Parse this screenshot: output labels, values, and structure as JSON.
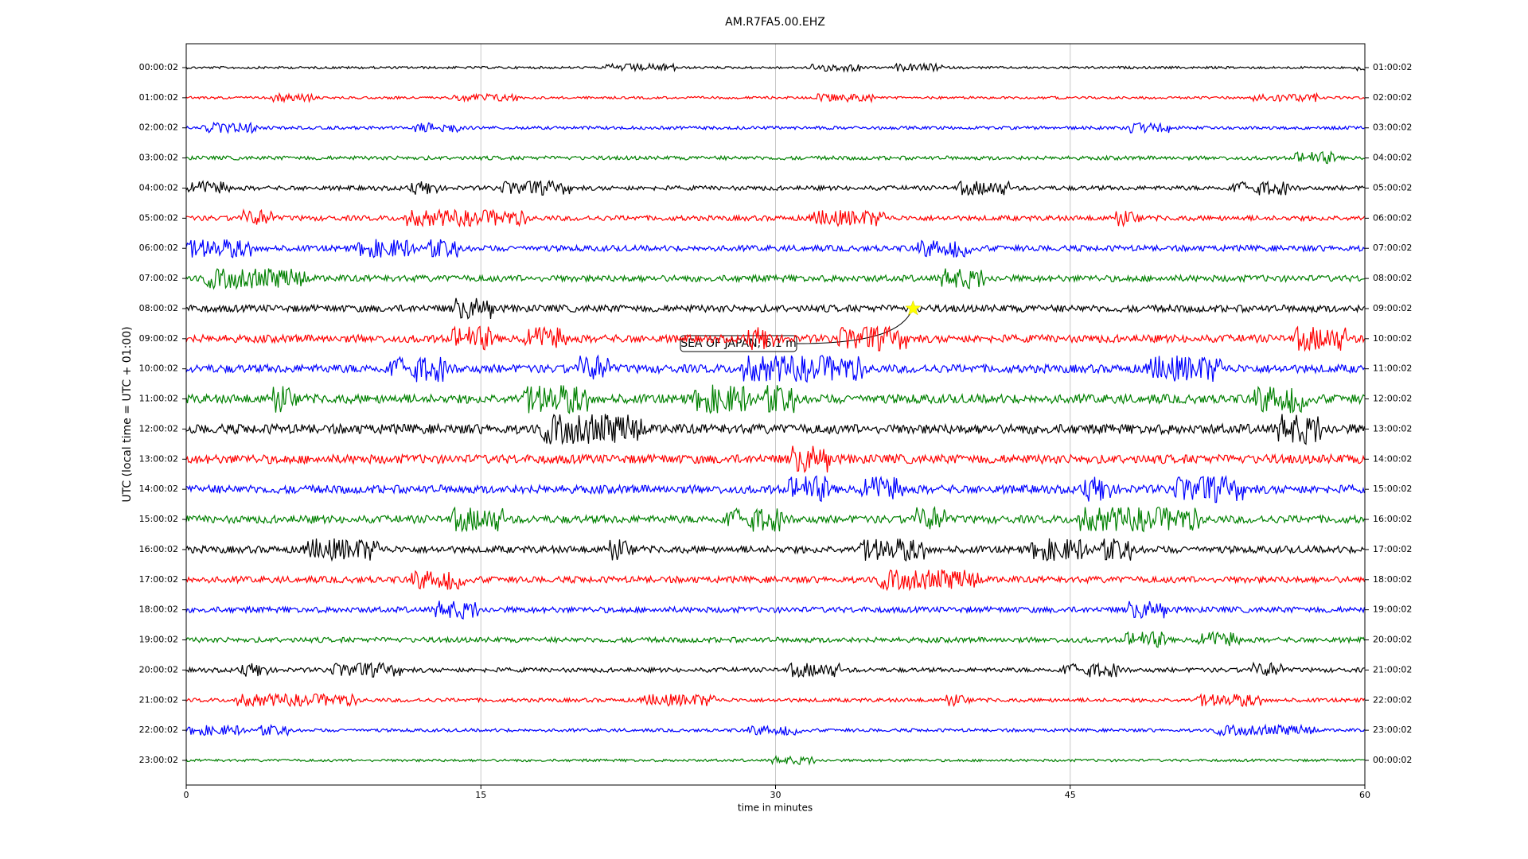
{
  "chart_data": {
    "type": "dayplot",
    "title": "AM.R7FA5.00.EHZ",
    "xlabel": "time in minutes",
    "ylabel": "UTC (local time = UTC + 01:00)",
    "xlim": [
      0,
      60
    ],
    "xticks": [
      0,
      15,
      30,
      45,
      60
    ],
    "grid": true,
    "colors": [
      "#000000",
      "#ff0000",
      "#0000ff",
      "#008000"
    ],
    "rows": [
      {
        "left": "00:00:02",
        "right": "01:00:02"
      },
      {
        "left": "01:00:02",
        "right": "02:00:02"
      },
      {
        "left": "02:00:02",
        "right": "03:00:02"
      },
      {
        "left": "03:00:02",
        "right": "04:00:02"
      },
      {
        "left": "04:00:02",
        "right": "05:00:02"
      },
      {
        "left": "05:00:02",
        "right": "06:00:02"
      },
      {
        "left": "06:00:02",
        "right": "07:00:02"
      },
      {
        "left": "07:00:02",
        "right": "08:00:02"
      },
      {
        "left": "08:00:02",
        "right": "09:00:02",
        "event": {
          "label": "SEA OF JAPAN, 6.1 m",
          "x": 37
        }
      },
      {
        "left": "09:00:02",
        "right": "10:00:02"
      },
      {
        "left": "10:00:02",
        "right": "11:00:02"
      },
      {
        "left": "11:00:02",
        "right": "12:00:02"
      },
      {
        "left": "12:00:02",
        "right": "13:00:02"
      },
      {
        "left": "13:00:02",
        "right": "14:00:02"
      },
      {
        "left": "14:00:02",
        "right": "15:00:02"
      },
      {
        "left": "15:00:02",
        "right": "16:00:02"
      },
      {
        "left": "16:00:02",
        "right": "17:00:02"
      },
      {
        "left": "17:00:02",
        "right": "18:00:02"
      },
      {
        "left": "18:00:02",
        "right": "19:00:02"
      },
      {
        "left": "19:00:02",
        "right": "20:00:02"
      },
      {
        "left": "20:00:02",
        "right": "21:00:02"
      },
      {
        "left": "21:00:02",
        "right": "22:00:02"
      },
      {
        "left": "22:00:02",
        "right": "23:00:02"
      },
      {
        "left": "23:00:02",
        "right": "00:00:02"
      }
    ]
  }
}
